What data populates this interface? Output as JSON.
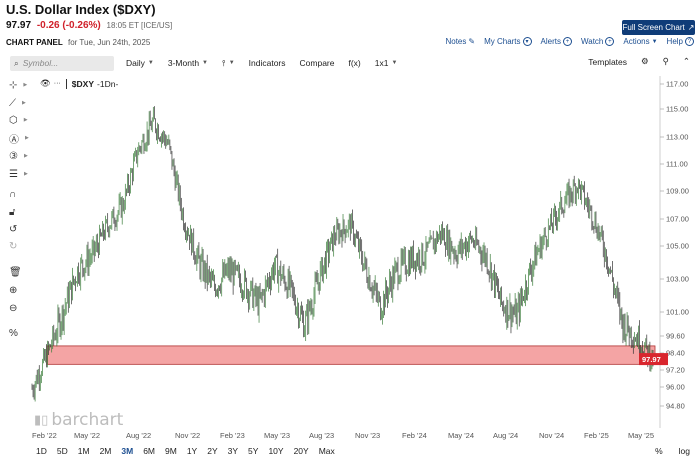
{
  "header": {
    "title": "U.S. Dollar Index ($DXY)",
    "last": "97.97",
    "change": "-0.26 (-0.26%)",
    "timestamp": "18:05 ET [ICE/US]",
    "fullscreen_label": "Full Screen Chart"
  },
  "panel": {
    "label": "CHART PANEL",
    "date": "for Tue, Jun 24th, 2025"
  },
  "toplinks": {
    "notes": "Notes",
    "my_charts": "My Charts",
    "alerts": "Alerts",
    "watch": "Watch",
    "actions": "Actions",
    "help": "Help"
  },
  "toolbar": {
    "symbol_placeholder": "Symbol...",
    "interval": "Daily",
    "range": "3-Month",
    "indicators": "Indicators",
    "compare": "Compare",
    "fx": "f(x)",
    "layout": "1x1",
    "templates": "Templates"
  },
  "legend": {
    "symbol": "$DXY",
    "period": "-1Dn-"
  },
  "watermark": "barchart",
  "ranges": [
    "1D",
    "5D",
    "1M",
    "2M",
    "3M",
    "6M",
    "9M",
    "1Y",
    "2Y",
    "3Y",
    "5Y",
    "10Y",
    "20Y",
    "Max"
  ],
  "active_range": "3M",
  "bottom_right": {
    "percent": "%",
    "log": "log"
  },
  "chart_data": {
    "type": "candlestick",
    "y_ticks": [
      "94.80",
      "96.00",
      "97.20",
      "98.40",
      "99.60",
      "101.00",
      "103.00",
      "105.00",
      "107.00",
      "109.00",
      "111.00",
      "113.00",
      "115.00",
      "117.00"
    ],
    "x_ticks": [
      "Feb '22",
      "May '22",
      "Aug '22",
      "Nov '22",
      "Feb '23",
      "May '23",
      "Aug '23",
      "Nov '23",
      "Feb '24",
      "May '24",
      "Aug '24",
      "Nov '24",
      "Feb '25",
      "May '25"
    ],
    "last_price_label": "97.97",
    "support_zone": {
      "low": 97.6,
      "high": 98.9,
      "color": "#f4a4a4"
    },
    "up_color": "#3a7d3a",
    "down_color": "#333333",
    "series": [
      {
        "date": "2022-02",
        "close": 95.9
      },
      {
        "date": "2022-03",
        "close": 98.3
      },
      {
        "date": "2022-04",
        "close": 100.9
      },
      {
        "date": "2022-05",
        "close": 103.5
      },
      {
        "date": "2022-06",
        "close": 104.5
      },
      {
        "date": "2022-07",
        "close": 106.5
      },
      {
        "date": "2022-08",
        "close": 108.0
      },
      {
        "date": "2022-09",
        "close": 112.0
      },
      {
        "date": "2022-09",
        "close": 114.1
      },
      {
        "date": "2022-10",
        "close": 112.5
      },
      {
        "date": "2022-11",
        "close": 107.0
      },
      {
        "date": "2022-12",
        "close": 104.0
      },
      {
        "date": "2023-01",
        "close": 102.5
      },
      {
        "date": "2023-02",
        "close": 103.5
      },
      {
        "date": "2023-03",
        "close": 102.7
      },
      {
        "date": "2023-04",
        "close": 101.5
      },
      {
        "date": "2023-05",
        "close": 103.8
      },
      {
        "date": "2023-06",
        "close": 102.5
      },
      {
        "date": "2023-07",
        "close": 100.2
      },
      {
        "date": "2023-08",
        "close": 103.2
      },
      {
        "date": "2023-09",
        "close": 105.8
      },
      {
        "date": "2023-10",
        "close": 106.6
      },
      {
        "date": "2023-11",
        "close": 103.7
      },
      {
        "date": "2023-12",
        "close": 101.3
      },
      {
        "date": "2024-01",
        "close": 103.4
      },
      {
        "date": "2024-02",
        "close": 104.2
      },
      {
        "date": "2024-03",
        "close": 104.5
      },
      {
        "date": "2024-04",
        "close": 106.0
      },
      {
        "date": "2024-05",
        "close": 104.6
      },
      {
        "date": "2024-06",
        "close": 105.5
      },
      {
        "date": "2024-07",
        "close": 104.3
      },
      {
        "date": "2024-08",
        "close": 101.5
      },
      {
        "date": "2024-09",
        "close": 100.8
      },
      {
        "date": "2024-10",
        "close": 103.8
      },
      {
        "date": "2024-11",
        "close": 106.0
      },
      {
        "date": "2024-12",
        "close": 108.0
      },
      {
        "date": "2025-01",
        "close": 109.5
      },
      {
        "date": "2025-02",
        "close": 107.3
      },
      {
        "date": "2025-03",
        "close": 104.2
      },
      {
        "date": "2025-04",
        "close": 100.3
      },
      {
        "date": "2025-05",
        "close": 99.4
      },
      {
        "date": "2025-06",
        "close": 97.97
      }
    ]
  }
}
